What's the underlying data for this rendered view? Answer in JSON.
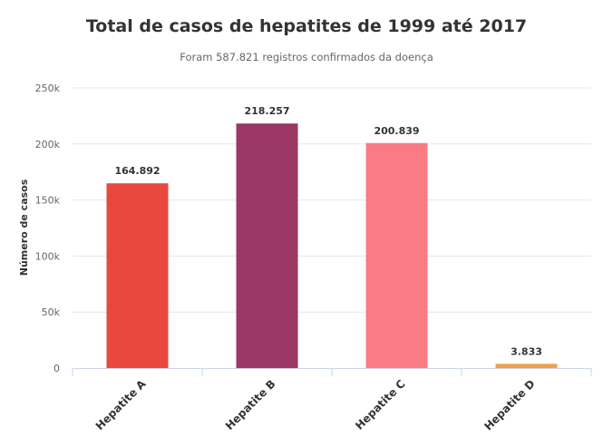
{
  "chart_data": {
    "type": "bar",
    "title": "Total de casos de hepatites de 1999 até 2017",
    "subtitle": "Foram 587.821 registros confirmados da doença",
    "xlabel": "",
    "ylabel": "Número de casos",
    "categories": [
      "Hepatite A",
      "Hepatite B",
      "Hepatite C",
      "Hepatite D"
    ],
    "values": [
      164892,
      218257,
      200839,
      3833
    ],
    "data_labels": [
      "164.892",
      "218.257",
      "200.839",
      "3.833"
    ],
    "colors": [
      "#e8483e",
      "#9b3765",
      "#fb7b85",
      "#f1a04e"
    ],
    "ylim": [
      0,
      250000
    ],
    "yticks": [
      0,
      50000,
      100000,
      150000,
      200000,
      250000
    ],
    "ytick_labels": [
      "0",
      "50k",
      "100k",
      "150k",
      "200k",
      "250k"
    ],
    "grid": true,
    "legend": "none"
  }
}
